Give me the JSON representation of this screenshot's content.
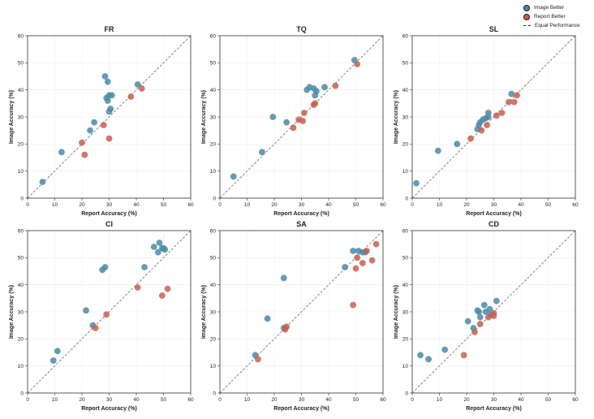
{
  "legend": {
    "image_better": "Image Better",
    "report_better": "Report Better",
    "equal": "Equal Performance"
  },
  "colors": {
    "image_better": "#4a8aa8",
    "report_better": "#c7604f",
    "diagonal": "#666666",
    "grid": "#eeeeee"
  },
  "chart_data": [
    {
      "type": "scatter",
      "title": "FR",
      "xlabel": "Report Accuracy (%)",
      "ylabel": "Image Accuracy (%)",
      "xlim": [
        0,
        60
      ],
      "ylim": [
        0,
        60
      ],
      "ticks": [
        0,
        10,
        20,
        30,
        40,
        50,
        60
      ],
      "grid": true,
      "series": [
        {
          "name": "Image Better",
          "points": [
            [
              5.5,
              6
            ],
            [
              12.5,
              17
            ],
            [
              23,
              25
            ],
            [
              24.5,
              28
            ],
            [
              28.5,
              45
            ],
            [
              29.5,
              43
            ],
            [
              29,
              37
            ],
            [
              29.5,
              36
            ],
            [
              30,
              38
            ],
            [
              31,
              38
            ],
            [
              30.5,
              33
            ],
            [
              30,
              32
            ],
            [
              40.5,
              42
            ]
          ]
        },
        {
          "name": "Report Better",
          "points": [
            [
              20,
              20.5
            ],
            [
              21,
              16
            ],
            [
              28,
              27
            ],
            [
              30,
              22
            ],
            [
              38,
              37.5
            ],
            [
              42,
              40.5
            ]
          ]
        }
      ]
    },
    {
      "type": "scatter",
      "title": "TQ",
      "xlabel": "Report Accuracy (%)",
      "ylabel": "Image Accuracy (%)",
      "xlim": [
        0,
        60
      ],
      "ylim": [
        0,
        60
      ],
      "ticks": [
        0,
        10,
        20,
        30,
        40,
        50,
        60
      ],
      "grid": true,
      "series": [
        {
          "name": "Image Better",
          "points": [
            [
              5,
              8
            ],
            [
              15.5,
              17
            ],
            [
              19.5,
              30
            ],
            [
              24.5,
              28
            ],
            [
              32,
              40
            ],
            [
              33,
              41
            ],
            [
              34.5,
              40.5
            ],
            [
              35.5,
              39.5
            ],
            [
              35,
              38
            ],
            [
              38.5,
              41
            ],
            [
              49.5,
              51
            ]
          ]
        },
        {
          "name": "Report Better",
          "points": [
            [
              27,
              26
            ],
            [
              29,
              29
            ],
            [
              30.5,
              28.5
            ],
            [
              31,
              31.5
            ],
            [
              34.5,
              34.5
            ],
            [
              35,
              35
            ],
            [
              42.5,
              41.5
            ],
            [
              50.5,
              49.5
            ]
          ]
        }
      ]
    },
    {
      "type": "scatter",
      "title": "SL",
      "xlabel": "Report Accuracy (%)",
      "ylabel": "Image Accuracy (%)",
      "xlim": [
        0,
        60
      ],
      "ylim": [
        0,
        60
      ],
      "ticks": [
        0,
        10,
        20,
        30,
        40,
        50,
        60
      ],
      "grid": true,
      "series": [
        {
          "name": "Image Better",
          "points": [
            [
              1.5,
              5.5
            ],
            [
              9.5,
              17.5
            ],
            [
              16.5,
              20
            ],
            [
              24,
              25.5
            ],
            [
              24.5,
              27
            ],
            [
              25,
              28
            ],
            [
              26,
              29
            ],
            [
              27,
              29.5
            ],
            [
              28,
              31.5
            ],
            [
              28,
              30
            ],
            [
              36.5,
              38.5
            ]
          ]
        },
        {
          "name": "Report Better",
          "points": [
            [
              21.5,
              22
            ],
            [
              25.5,
              25
            ],
            [
              27.5,
              27
            ],
            [
              31,
              30.5
            ],
            [
              33,
              31.5
            ],
            [
              35.5,
              35.5
            ],
            [
              37.5,
              35.5
            ],
            [
              38.5,
              38
            ]
          ]
        }
      ]
    },
    {
      "type": "scatter",
      "title": "CI",
      "xlabel": "Report Accuracy (%)",
      "ylabel": "Image Accuracy (%)",
      "xlim": [
        0,
        60
      ],
      "ylim": [
        0,
        60
      ],
      "ticks": [
        0,
        10,
        20,
        30,
        40,
        50,
        60
      ],
      "grid": true,
      "series": [
        {
          "name": "Image Better",
          "points": [
            [
              9.5,
              12
            ],
            [
              11,
              15.5
            ],
            [
              21.5,
              30.5
            ],
            [
              24,
              25
            ],
            [
              27.5,
              45.5
            ],
            [
              28.5,
              46.5
            ],
            [
              43,
              46.5
            ],
            [
              46.5,
              54
            ],
            [
              48,
              52
            ],
            [
              48.5,
              55.5
            ],
            [
              49.5,
              53.5
            ],
            [
              50,
              53.5
            ],
            [
              50.5,
              53
            ]
          ]
        },
        {
          "name": "Report Better",
          "points": [
            [
              25,
              24
            ],
            [
              29,
              29
            ],
            [
              40.5,
              39
            ],
            [
              49.5,
              36
            ],
            [
              51.5,
              38.5
            ]
          ]
        }
      ]
    },
    {
      "type": "scatter",
      "title": "SA",
      "xlabel": "Report Accuracy (%)",
      "ylabel": "Image Accuracy (%)",
      "xlim": [
        0,
        60
      ],
      "ylim": [
        0,
        60
      ],
      "ticks": [
        0,
        10,
        20,
        30,
        40,
        50,
        60
      ],
      "grid": true,
      "series": [
        {
          "name": "Image Better",
          "points": [
            [
              13,
              14
            ],
            [
              17.5,
              27.5
            ],
            [
              23.5,
              42.5
            ],
            [
              23.5,
              24
            ],
            [
              46,
              46.5
            ],
            [
              49,
              52.5
            ],
            [
              51,
              52.5
            ],
            [
              52.5,
              52
            ],
            [
              53.5,
              52
            ]
          ]
        },
        {
          "name": "Report Better",
          "points": [
            [
              14,
              12.5
            ],
            [
              24,
              23.5
            ],
            [
              24.5,
              24.5
            ],
            [
              49,
              32.5
            ],
            [
              50,
              46
            ],
            [
              50.5,
              50
            ],
            [
              52.5,
              48
            ],
            [
              54,
              52.5
            ],
            [
              56,
              49
            ],
            [
              57.5,
              55
            ]
          ]
        }
      ]
    },
    {
      "type": "scatter",
      "title": "CD",
      "xlabel": "Report Accuracy (%)",
      "ylabel": "Image Accuracy (%)",
      "xlim": [
        0,
        60
      ],
      "ylim": [
        0,
        60
      ],
      "ticks": [
        0,
        10,
        20,
        30,
        40,
        50,
        60
      ],
      "grid": true,
      "series": [
        {
          "name": "Image Better",
          "points": [
            [
              3,
              14
            ],
            [
              6,
              12.5
            ],
            [
              12,
              16
            ],
            [
              20.5,
              26.5
            ],
            [
              22.5,
              24
            ],
            [
              24,
              30.5
            ],
            [
              24.5,
              30
            ],
            [
              25,
              28
            ],
            [
              26.5,
              32.5
            ],
            [
              27,
              30
            ],
            [
              28.5,
              31
            ],
            [
              29,
              29
            ],
            [
              31,
              34
            ]
          ]
        },
        {
          "name": "Report Better",
          "points": [
            [
              19,
              14
            ],
            [
              23,
              22.5
            ],
            [
              25,
              25.5
            ],
            [
              28,
              28
            ],
            [
              30,
              28.5
            ],
            [
              30,
              29.5
            ]
          ]
        }
      ]
    }
  ]
}
